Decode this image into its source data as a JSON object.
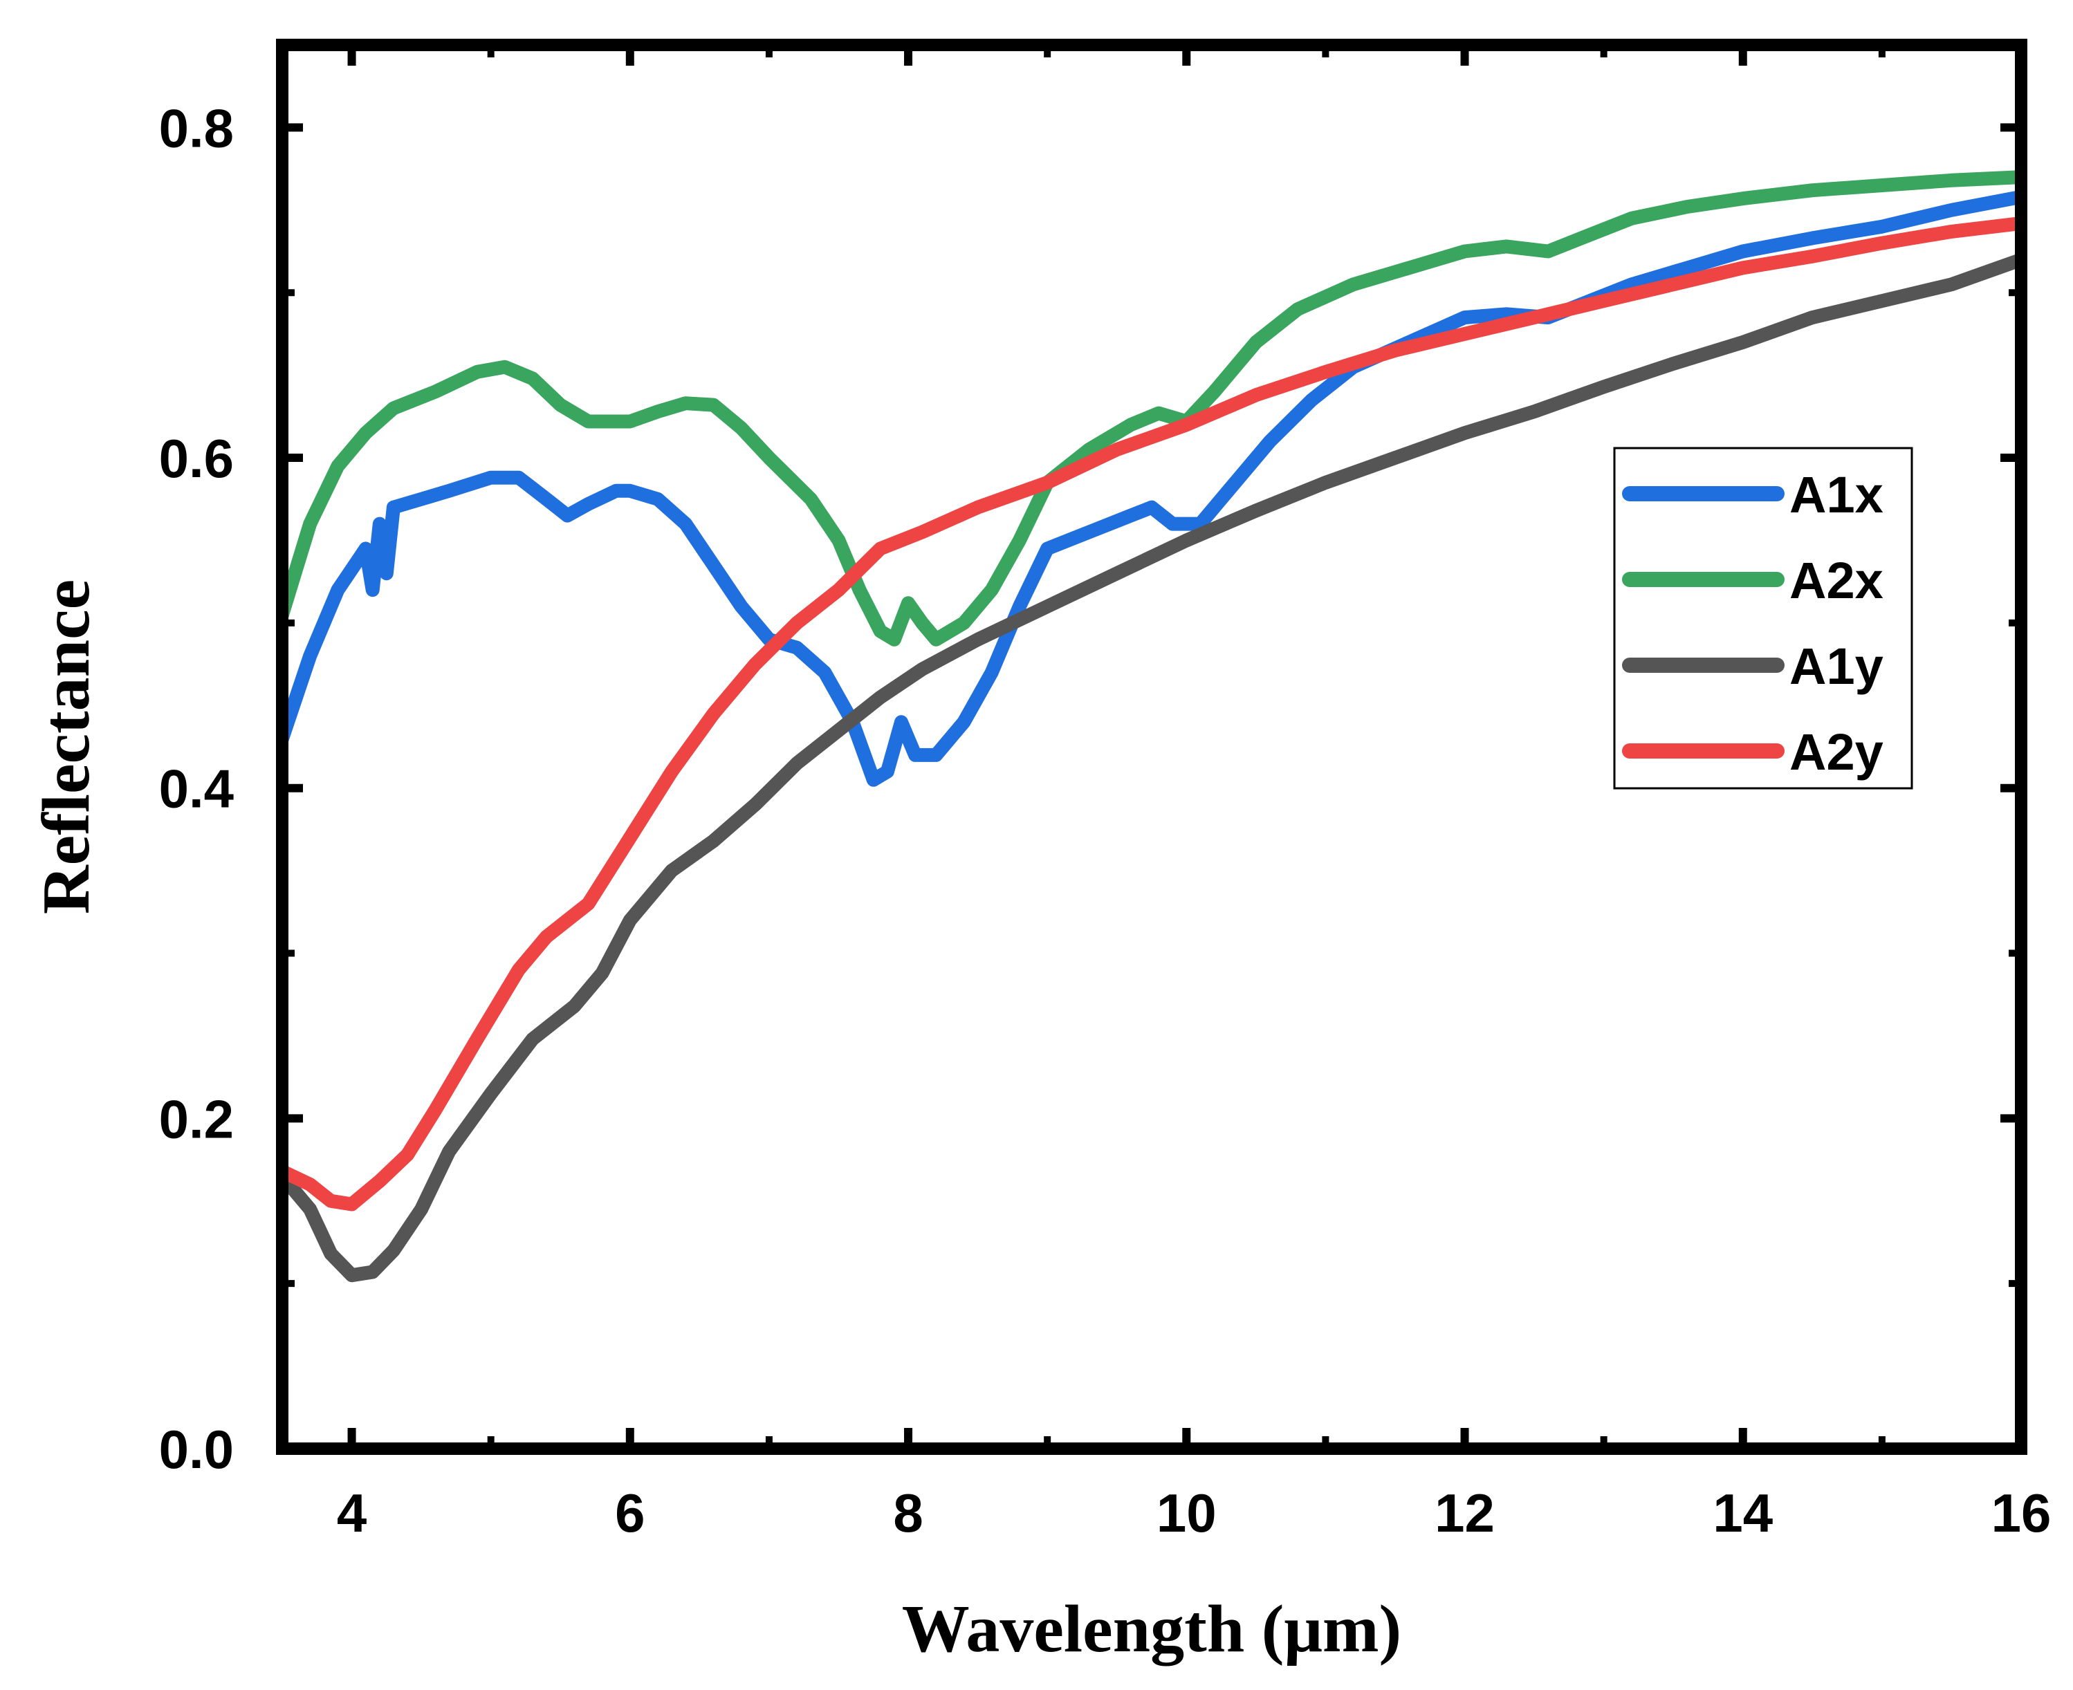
{
  "chart_data": {
    "type": "line",
    "title": "",
    "xlabel": "Wavelength (μm)",
    "ylabel": "Reflectance",
    "xlim": [
      3.5,
      16
    ],
    "ylim": [
      0.0,
      0.85
    ],
    "xticks": [
      4,
      6,
      8,
      10,
      12,
      14,
      16
    ],
    "yticks": [
      0.0,
      0.2,
      0.4,
      0.6,
      0.8
    ],
    "xtick_labels": [
      "4",
      "6",
      "8",
      "10",
      "12",
      "14",
      "16"
    ],
    "ytick_labels": [
      "0.0",
      "0.2",
      "0.4",
      "0.6",
      "0.8"
    ],
    "grid": false,
    "legend_position": "right-middle",
    "series": [
      {
        "name": "A1x",
        "color": "#1f6fde",
        "points": [
          [
            3.5,
            0.43
          ],
          [
            3.7,
            0.48
          ],
          [
            3.9,
            0.52
          ],
          [
            4.1,
            0.545
          ],
          [
            4.15,
            0.52
          ],
          [
            4.2,
            0.56
          ],
          [
            4.25,
            0.53
          ],
          [
            4.3,
            0.57
          ],
          [
            4.5,
            0.575
          ],
          [
            4.7,
            0.58
          ],
          [
            5.0,
            0.588
          ],
          [
            5.2,
            0.588
          ],
          [
            5.4,
            0.575
          ],
          [
            5.55,
            0.565
          ],
          [
            5.7,
            0.572
          ],
          [
            5.9,
            0.58
          ],
          [
            6.0,
            0.58
          ],
          [
            6.2,
            0.575
          ],
          [
            6.4,
            0.56
          ],
          [
            6.6,
            0.535
          ],
          [
            6.8,
            0.51
          ],
          [
            7.0,
            0.49
          ],
          [
            7.2,
            0.485
          ],
          [
            7.4,
            0.47
          ],
          [
            7.6,
            0.44
          ],
          [
            7.75,
            0.405
          ],
          [
            7.85,
            0.41
          ],
          [
            7.95,
            0.44
          ],
          [
            8.05,
            0.42
          ],
          [
            8.2,
            0.42
          ],
          [
            8.4,
            0.44
          ],
          [
            8.6,
            0.47
          ],
          [
            8.8,
            0.51
          ],
          [
            9.0,
            0.545
          ],
          [
            9.3,
            0.555
          ],
          [
            9.6,
            0.565
          ],
          [
            9.75,
            0.57
          ],
          [
            9.9,
            0.56
          ],
          [
            10.1,
            0.56
          ],
          [
            10.3,
            0.58
          ],
          [
            10.6,
            0.61
          ],
          [
            10.9,
            0.635
          ],
          [
            11.2,
            0.655
          ],
          [
            11.6,
            0.67
          ],
          [
            12.0,
            0.685
          ],
          [
            12.3,
            0.687
          ],
          [
            12.6,
            0.685
          ],
          [
            12.9,
            0.695
          ],
          [
            13.2,
            0.705
          ],
          [
            13.6,
            0.715
          ],
          [
            14.0,
            0.725
          ],
          [
            14.5,
            0.733
          ],
          [
            15.0,
            0.74
          ],
          [
            15.5,
            0.75
          ],
          [
            16.0,
            0.758
          ]
        ]
      },
      {
        "name": "A2x",
        "color": "#3aa55e",
        "points": [
          [
            3.5,
            0.505
          ],
          [
            3.7,
            0.56
          ],
          [
            3.9,
            0.595
          ],
          [
            4.1,
            0.615
          ],
          [
            4.3,
            0.63
          ],
          [
            4.6,
            0.64
          ],
          [
            4.9,
            0.652
          ],
          [
            5.1,
            0.655
          ],
          [
            5.3,
            0.648
          ],
          [
            5.5,
            0.632
          ],
          [
            5.7,
            0.622
          ],
          [
            6.0,
            0.622
          ],
          [
            6.2,
            0.628
          ],
          [
            6.4,
            0.633
          ],
          [
            6.6,
            0.632
          ],
          [
            6.8,
            0.618
          ],
          [
            7.0,
            0.6
          ],
          [
            7.3,
            0.575
          ],
          [
            7.5,
            0.55
          ],
          [
            7.65,
            0.52
          ],
          [
            7.8,
            0.495
          ],
          [
            7.9,
            0.49
          ],
          [
            8.0,
            0.512
          ],
          [
            8.1,
            0.5
          ],
          [
            8.2,
            0.49
          ],
          [
            8.4,
            0.5
          ],
          [
            8.6,
            0.52
          ],
          [
            8.8,
            0.55
          ],
          [
            9.0,
            0.585
          ],
          [
            9.3,
            0.605
          ],
          [
            9.6,
            0.62
          ],
          [
            9.8,
            0.627
          ],
          [
            10.0,
            0.622
          ],
          [
            10.2,
            0.64
          ],
          [
            10.5,
            0.67
          ],
          [
            10.8,
            0.69
          ],
          [
            11.2,
            0.705
          ],
          [
            11.6,
            0.715
          ],
          [
            12.0,
            0.725
          ],
          [
            12.3,
            0.728
          ],
          [
            12.6,
            0.725
          ],
          [
            12.9,
            0.735
          ],
          [
            13.2,
            0.745
          ],
          [
            13.6,
            0.752
          ],
          [
            14.0,
            0.757
          ],
          [
            14.5,
            0.762
          ],
          [
            15.0,
            0.765
          ],
          [
            15.5,
            0.768
          ],
          [
            16.0,
            0.77
          ]
        ]
      },
      {
        "name": "A1y",
        "color": "#555555",
        "points": [
          [
            3.5,
            0.165
          ],
          [
            3.7,
            0.145
          ],
          [
            3.85,
            0.118
          ],
          [
            4.0,
            0.105
          ],
          [
            4.15,
            0.107
          ],
          [
            4.3,
            0.12
          ],
          [
            4.5,
            0.145
          ],
          [
            4.7,
            0.18
          ],
          [
            5.0,
            0.215
          ],
          [
            5.3,
            0.248
          ],
          [
            5.6,
            0.268
          ],
          [
            5.8,
            0.288
          ],
          [
            6.0,
            0.32
          ],
          [
            6.3,
            0.35
          ],
          [
            6.6,
            0.368
          ],
          [
            6.9,
            0.39
          ],
          [
            7.2,
            0.415
          ],
          [
            7.5,
            0.435
          ],
          [
            7.8,
            0.455
          ],
          [
            8.1,
            0.472
          ],
          [
            8.5,
            0.49
          ],
          [
            9.0,
            0.51
          ],
          [
            9.5,
            0.53
          ],
          [
            10.0,
            0.55
          ],
          [
            10.5,
            0.568
          ],
          [
            11.0,
            0.585
          ],
          [
            11.5,
            0.6
          ],
          [
            12.0,
            0.615
          ],
          [
            12.5,
            0.628
          ],
          [
            13.0,
            0.643
          ],
          [
            13.5,
            0.657
          ],
          [
            14.0,
            0.67
          ],
          [
            14.5,
            0.685
          ],
          [
            15.0,
            0.695
          ],
          [
            15.5,
            0.705
          ],
          [
            16.0,
            0.72
          ]
        ]
      },
      {
        "name": "A2y",
        "color": "#ee4444",
        "points": [
          [
            3.5,
            0.168
          ],
          [
            3.7,
            0.16
          ],
          [
            3.85,
            0.15
          ],
          [
            4.0,
            0.148
          ],
          [
            4.2,
            0.162
          ],
          [
            4.4,
            0.178
          ],
          [
            4.6,
            0.205
          ],
          [
            4.9,
            0.248
          ],
          [
            5.2,
            0.29
          ],
          [
            5.4,
            0.31
          ],
          [
            5.7,
            0.33
          ],
          [
            6.0,
            0.37
          ],
          [
            6.3,
            0.41
          ],
          [
            6.6,
            0.445
          ],
          [
            6.9,
            0.475
          ],
          [
            7.2,
            0.5
          ],
          [
            7.5,
            0.52
          ],
          [
            7.8,
            0.545
          ],
          [
            8.1,
            0.555
          ],
          [
            8.5,
            0.57
          ],
          [
            9.0,
            0.585
          ],
          [
            9.5,
            0.605
          ],
          [
            10.0,
            0.62
          ],
          [
            10.5,
            0.638
          ],
          [
            11.0,
            0.652
          ],
          [
            11.5,
            0.665
          ],
          [
            12.0,
            0.675
          ],
          [
            12.5,
            0.685
          ],
          [
            13.0,
            0.695
          ],
          [
            13.5,
            0.705
          ],
          [
            14.0,
            0.715
          ],
          [
            14.5,
            0.722
          ],
          [
            15.0,
            0.73
          ],
          [
            15.5,
            0.737
          ],
          [
            16.0,
            0.742
          ]
        ]
      }
    ]
  }
}
